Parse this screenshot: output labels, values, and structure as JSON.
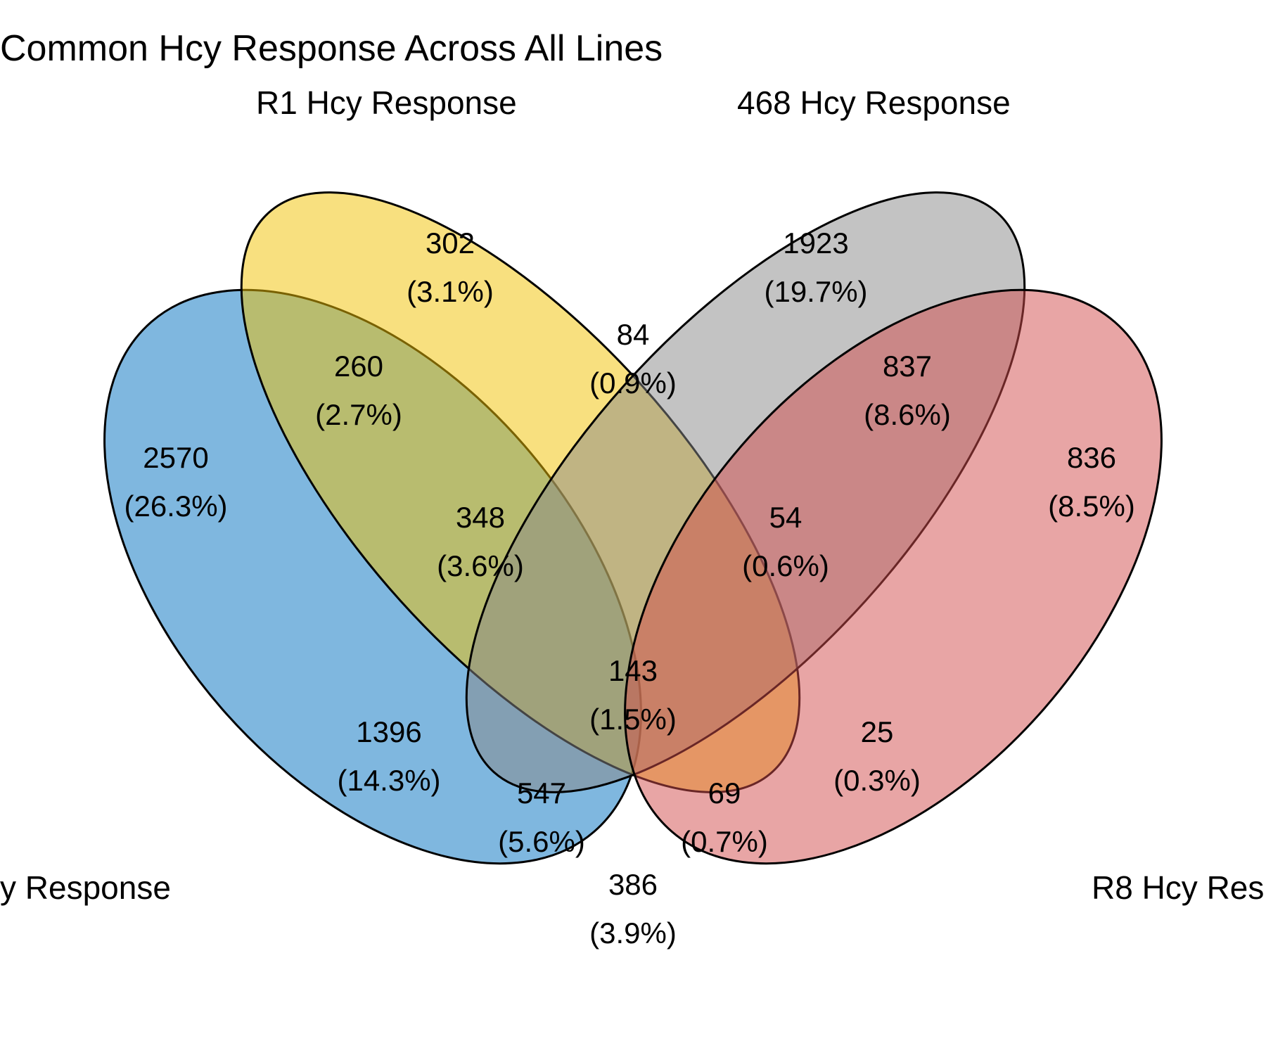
{
  "title": "Common Hcy Response Across All Lines",
  "sets": [
    {
      "id": "left",
      "label": "y Response",
      "color": "#0070C0"
    },
    {
      "id": "r1",
      "label": "R1 Hcy Response",
      "color": "#F2C200"
    },
    {
      "id": "s468",
      "label": "468 Hcy Response",
      "color": "#888888"
    },
    {
      "id": "r8",
      "label": "R8 Hcy Res",
      "color": "#D24B4B"
    }
  ],
  "regions": [
    {
      "key": "left_only",
      "count": "2570",
      "pct": "(26.3%)"
    },
    {
      "key": "r1_only",
      "count": "302",
      "pct": "(3.1%)"
    },
    {
      "key": "s468_only",
      "count": "1923",
      "pct": "(19.7%)"
    },
    {
      "key": "r8_only",
      "count": "836",
      "pct": "(8.5%)"
    },
    {
      "key": "left_r1",
      "count": "260",
      "pct": "(2.7%)"
    },
    {
      "key": "r1_s468",
      "count": "84",
      "pct": "(0.9%)"
    },
    {
      "key": "s468_r8",
      "count": "837",
      "pct": "(8.6%)"
    },
    {
      "key": "left_r1_s468",
      "count": "348",
      "pct": "(3.6%)"
    },
    {
      "key": "r1_s468_r8",
      "count": "54",
      "pct": "(0.6%)"
    },
    {
      "key": "all",
      "count": "143",
      "pct": "(1.5%)"
    },
    {
      "key": "left_s468",
      "count": "1396",
      "pct": "(14.3%)"
    },
    {
      "key": "r1_r8",
      "count": "25",
      "pct": "(0.3%)"
    },
    {
      "key": "left_s468_r8",
      "count": "547",
      "pct": "(5.6%)"
    },
    {
      "key": "left_r1_r8",
      "count": "69",
      "pct": "(0.7%)"
    },
    {
      "key": "left_r8",
      "count": "386",
      "pct": "(3.9%)"
    }
  ]
}
